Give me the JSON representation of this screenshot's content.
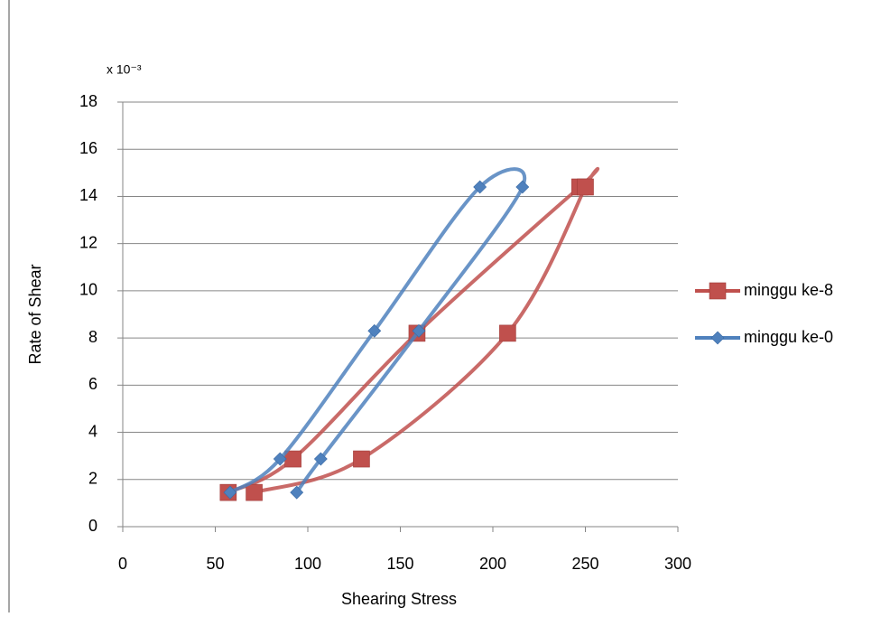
{
  "chart_data": {
    "type": "scatter",
    "x_label": "Shearing Stress",
    "y_label": "Rate of Shear",
    "y_multiplier": "x 10⁻³",
    "xlim": [
      0,
      300
    ],
    "xticks": [
      0,
      50,
      100,
      150,
      200,
      250,
      300
    ],
    "ylim": [
      0,
      18
    ],
    "yticks": [
      0,
      2,
      4,
      6,
      8,
      10,
      12,
      14,
      16,
      18
    ],
    "grid": true,
    "smooth": true,
    "legend": "right",
    "series": [
      {
        "name": "minggu ke-8",
        "color": "#c0504d",
        "marker": "square",
        "x": [
          57,
          92,
          159,
          247,
          250,
          208,
          129,
          71
        ],
        "values": [
          1.45,
          2.87,
          8.2,
          14.4,
          14.4,
          8.2,
          2.87,
          1.45
        ]
      },
      {
        "name": "minggu ke-0",
        "color": "#4f81bd",
        "marker": "diamond",
        "x": [
          58,
          85,
          136,
          193,
          216,
          160,
          107,
          94
        ],
        "values": [
          1.45,
          2.87,
          8.3,
          14.4,
          14.4,
          8.3,
          2.87,
          1.45
        ]
      }
    ]
  }
}
